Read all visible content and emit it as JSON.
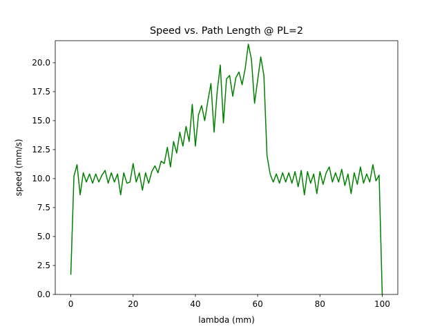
{
  "chart_data": {
    "type": "line",
    "title": "Speed vs. Path Length @ PL=2",
    "x_label": "lambda (mm)",
    "y_label": "speed (mm/s)",
    "x": [
      0,
      1,
      2,
      3,
      4,
      5,
      6,
      7,
      8,
      9,
      10,
      11,
      12,
      13,
      14,
      15,
      16,
      17,
      18,
      19,
      20,
      21,
      22,
      23,
      24,
      25,
      26,
      27,
      28,
      29,
      30,
      31,
      32,
      33,
      34,
      35,
      36,
      37,
      38,
      39,
      40,
      41,
      42,
      43,
      44,
      45,
      46,
      47,
      48,
      49,
      50,
      51,
      52,
      53,
      54,
      55,
      56,
      57,
      58,
      59,
      60,
      61,
      62,
      63,
      64,
      65,
      66,
      67,
      68,
      69,
      70,
      71,
      72,
      73,
      74,
      75,
      76,
      77,
      78,
      79,
      80,
      81,
      82,
      83,
      84,
      85,
      86,
      87,
      88,
      89,
      90,
      91,
      92,
      93,
      94,
      95,
      96,
      97,
      98,
      99,
      100
    ],
    "series": [
      {
        "color": "#008000",
        "values": [
          1.7,
          10.2,
          11.2,
          8.6,
          10.5,
          9.7,
          10.4,
          9.6,
          10.4,
          9.7,
          10.3,
          10.7,
          9.6,
          10.5,
          9.7,
          10.4,
          8.6,
          10.5,
          9.6,
          9.7,
          11.3,
          9.7,
          10.5,
          9.0,
          10.5,
          9.6,
          10.6,
          11.1,
          10.5,
          11.5,
          11.3,
          12.7,
          11.0,
          13.2,
          12.2,
          14.0,
          12.8,
          14.5,
          13.2,
          16.4,
          12.8,
          15.5,
          16.3,
          15.0,
          16.7,
          18.2,
          14.0,
          17.5,
          19.8,
          14.8,
          18.6,
          18.9,
          17.1,
          18.7,
          19.2,
          18.1,
          19.5,
          21.6,
          20.3,
          16.5,
          18.5,
          20.5,
          18.9,
          12.0,
          10.4,
          9.7,
          10.4,
          9.6,
          10.5,
          9.7,
          10.5,
          9.6,
          10.6,
          9.3,
          10.7,
          8.6,
          10.6,
          9.6,
          10.4,
          8.7,
          10.6,
          9.5,
          10.5,
          11.0,
          9.7,
          10.5,
          9.7,
          10.8,
          9.4,
          10.4,
          8.7,
          10.5,
          9.5,
          11.0,
          9.6,
          10.4,
          9.7,
          11.2,
          9.8,
          10.3,
          0
        ]
      }
    ],
    "xlim": [
      -5,
      105
    ],
    "ylim": [
      0,
      21.9
    ],
    "xticks": [
      0,
      20,
      40,
      60,
      80,
      100
    ],
    "yticks": [
      {
        "value": 0,
        "label": "0.0"
      },
      2.5,
      {
        "value": 5,
        "label": "5.0"
      },
      7.5,
      {
        "value": 10,
        "label": "10.0"
      },
      12.5,
      {
        "value": 15,
        "label": "15.0"
      },
      17.5,
      {
        "value": 20,
        "label": "20.0"
      }
    ]
  }
}
